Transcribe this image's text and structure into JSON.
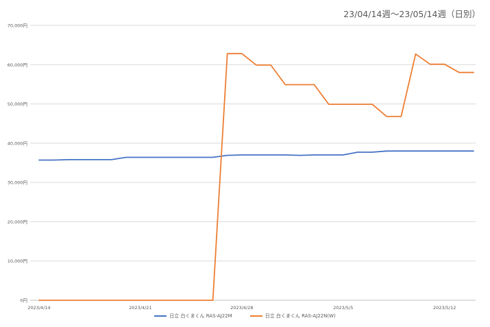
{
  "chart_data": {
    "type": "line",
    "title": "23/04/14週～23/05/14週（日別）",
    "xlabel": "",
    "ylabel": "",
    "ylim": [
      0,
      70000
    ],
    "yticks": [
      0,
      10000,
      20000,
      30000,
      40000,
      50000,
      60000,
      70000
    ],
    "ytick_labels": [
      "0円",
      "10,000円",
      "20,000円",
      "30,000円",
      "40,000円",
      "50,000円",
      "60,000円",
      "70,000円"
    ],
    "xtick_labels": [
      "2023/4/14",
      "2023/4/21",
      "2023/4/28",
      "2023/5/5",
      "2023/5/12"
    ],
    "x": [
      "2023/4/14",
      "2023/4/15",
      "2023/4/16",
      "2023/4/17",
      "2023/4/18",
      "2023/4/19",
      "2023/4/20",
      "2023/4/21",
      "2023/4/22",
      "2023/4/23",
      "2023/4/24",
      "2023/4/25",
      "2023/4/26",
      "2023/4/27",
      "2023/4/28",
      "2023/4/29",
      "2023/4/30",
      "2023/5/1",
      "2023/5/2",
      "2023/5/3",
      "2023/5/4",
      "2023/5/5",
      "2023/5/6",
      "2023/5/7",
      "2023/5/8",
      "2023/5/9",
      "2023/5/10",
      "2023/5/11",
      "2023/5/12",
      "2023/5/13",
      "2023/5/14"
    ],
    "grid": true,
    "legend_position": "bottom",
    "series": [
      {
        "name": "日立 白くまくん RAS-AJ22M",
        "color": "#4472C4",
        "values": [
          35700,
          35700,
          35800,
          35800,
          35800,
          35800,
          36400,
          36400,
          36400,
          36400,
          36400,
          36400,
          36400,
          36900,
          37000,
          37000,
          37000,
          37000,
          36900,
          37000,
          37000,
          37000,
          37700,
          37700,
          38000,
          38000,
          38000,
          38000,
          38000,
          38000,
          38000
        ]
      },
      {
        "name": "日立 白くまくん RAS-AJ22N(W)",
        "color": "#ED7D31",
        "values": [
          0,
          0,
          0,
          0,
          0,
          0,
          0,
          0,
          0,
          0,
          0,
          0,
          0,
          62800,
          62800,
          59900,
          59900,
          54900,
          54900,
          54900,
          49900,
          49900,
          49900,
          49900,
          46800,
          46800,
          62700,
          60100,
          60100,
          58000,
          58000
        ]
      }
    ]
  }
}
